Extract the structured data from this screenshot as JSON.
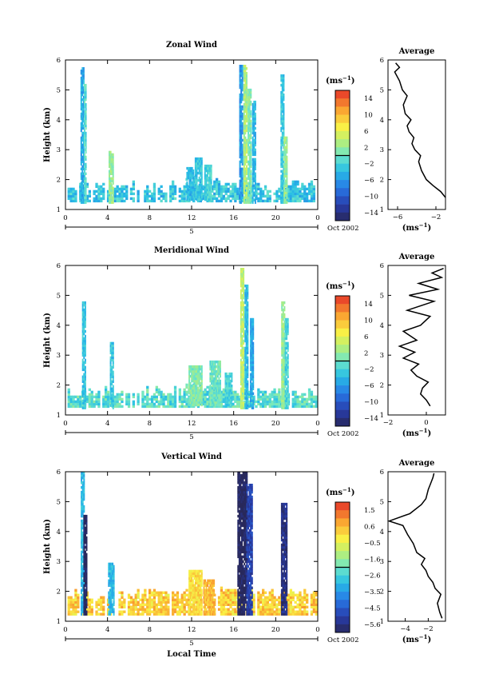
{
  "chart_data": [
    {
      "type": "heatmap",
      "title": "Zonal Wind",
      "ylabel": "Height (km)",
      "xlabel": "",
      "xlim": [
        0,
        24
      ],
      "ylim": [
        1,
        6
      ],
      "x_ticks": [
        "0",
        "4",
        "8",
        "12",
        "16",
        "20",
        "0"
      ],
      "y_ticks": [
        "1",
        "2",
        "3",
        "4",
        "5",
        "6"
      ],
      "date_label": "5",
      "date_caption": "Oct 2002",
      "colorbar": {
        "unit": "(ms",
        "unit_sup": "−1",
        "unit_close": ")",
        "ticks": [
          "14",
          "10",
          "6",
          "2",
          "−2",
          "−6",
          "−10",
          "−14"
        ],
        "range": [
          -16,
          16
        ]
      },
      "blobs": [
        {
          "x": 1.55,
          "y0": 1.2,
          "y1": 5.7,
          "w": 0.25,
          "v": -5
        },
        {
          "x": 1.85,
          "y0": 1.2,
          "y1": 5.2,
          "w": 0.2,
          "v": -1
        },
        {
          "x": 4.3,
          "y0": 1.2,
          "y1": 2.9,
          "w": 0.4,
          "v": 2
        },
        {
          "x": 11.8,
          "y0": 1.3,
          "y1": 2.4,
          "w": 0.6,
          "v": -4
        },
        {
          "x": 12.6,
          "y0": 1.3,
          "y1": 2.7,
          "w": 0.6,
          "v": -3
        },
        {
          "x": 13.5,
          "y0": 1.3,
          "y1": 2.5,
          "w": 0.6,
          "v": -2
        },
        {
          "x": 16.7,
          "y0": 1.2,
          "y1": 5.8,
          "w": 0.35,
          "v": -6
        },
        {
          "x": 17.1,
          "y0": 1.2,
          "y1": 5.8,
          "w": 0.35,
          "v": 3
        },
        {
          "x": 17.5,
          "y0": 1.2,
          "y1": 5.0,
          "w": 0.35,
          "v": 1
        },
        {
          "x": 17.9,
          "y0": 1.2,
          "y1": 4.6,
          "w": 0.3,
          "v": -4
        },
        {
          "x": 20.6,
          "y0": 1.2,
          "y1": 5.5,
          "w": 0.3,
          "v": -3
        },
        {
          "x": 20.9,
          "y0": 1.2,
          "y1": 3.4,
          "w": 0.3,
          "v": 2
        }
      ],
      "base_layer": {
        "y0": 1.25,
        "y1": 1.75,
        "v": -3
      },
      "profile": {
        "title": "Average",
        "xlabel": "(ms",
        "xlabel_sup": "−1",
        "xlabel_close": ")",
        "xlim": [
          -7,
          -1
        ],
        "x_ticks": [
          "−6",
          "−2"
        ],
        "x_tick_values": [
          -6,
          -2
        ],
        "y_ticks": [
          "1",
          "2",
          "3",
          "4",
          "5",
          "6"
        ],
        "x": [
          -1.0,
          -1.5,
          -2.3,
          -3.0,
          -3.5,
          -3.8,
          -3.6,
          -4.2,
          -4.5,
          -4.3,
          -4.8,
          -5.0,
          -4.6,
          -5.2,
          -5.4,
          -5.0,
          -5.5,
          -5.8,
          -6.3,
          -5.8,
          -6.2
        ],
        "y": [
          1.4,
          1.6,
          1.8,
          2.0,
          2.3,
          2.6,
          2.8,
          3.0,
          3.2,
          3.4,
          3.6,
          3.8,
          4.0,
          4.2,
          4.5,
          4.8,
          5.0,
          5.3,
          5.6,
          5.75,
          5.9
        ]
      }
    },
    {
      "type": "heatmap",
      "title": "Meridional Wind",
      "ylabel": "Height (km)",
      "xlabel": "",
      "xlim": [
        0,
        24
      ],
      "ylim": [
        1,
        6
      ],
      "x_ticks": [
        "0",
        "4",
        "8",
        "12",
        "16",
        "20",
        "0"
      ],
      "y_ticks": [
        "1",
        "2",
        "3",
        "4",
        "5",
        "6"
      ],
      "date_label": "5",
      "date_caption": "Oct 2002",
      "colorbar": {
        "unit": "(ms",
        "unit_sup": "−1",
        "unit_close": ")",
        "ticks": [
          "14",
          "10",
          "6",
          "2",
          "−2",
          "−6",
          "−10",
          "−14"
        ],
        "range": [
          -16,
          16
        ]
      },
      "blobs": [
        {
          "x": 1.7,
          "y0": 1.2,
          "y1": 4.8,
          "w": 0.25,
          "v": -3
        },
        {
          "x": 4.4,
          "y0": 1.2,
          "y1": 3.4,
          "w": 0.35,
          "v": -3
        },
        {
          "x": 12.3,
          "y0": 1.3,
          "y1": 2.6,
          "w": 1.2,
          "v": 1
        },
        {
          "x": 14.2,
          "y0": 1.3,
          "y1": 2.8,
          "w": 1.0,
          "v": 0
        },
        {
          "x": 15.5,
          "y0": 1.3,
          "y1": 2.4,
          "w": 0.7,
          "v": -2
        },
        {
          "x": 16.8,
          "y0": 1.2,
          "y1": 5.9,
          "w": 0.35,
          "v": 4
        },
        {
          "x": 17.2,
          "y0": 1.2,
          "y1": 5.3,
          "w": 0.35,
          "v": -4
        },
        {
          "x": 17.7,
          "y0": 1.2,
          "y1": 4.2,
          "w": 0.3,
          "v": -5
        },
        {
          "x": 20.7,
          "y0": 1.2,
          "y1": 4.8,
          "w": 0.35,
          "v": 2
        },
        {
          "x": 21.0,
          "y0": 1.2,
          "y1": 4.2,
          "w": 0.3,
          "v": -2
        }
      ],
      "base_layer": {
        "y0": 1.25,
        "y1": 1.75,
        "v": -1
      },
      "profile": {
        "title": "Average",
        "xlabel": "(ms",
        "xlabel_sup": "−1",
        "xlabel_close": ")",
        "xlim": [
          -2,
          1
        ],
        "x_ticks": [
          "−2",
          "0"
        ],
        "x_tick_values": [
          -2,
          0
        ],
        "y_ticks": [
          "1",
          "2",
          "3",
          "4",
          "5",
          "6"
        ],
        "x": [
          0.2,
          0.0,
          -0.3,
          -0.2,
          0.1,
          -0.5,
          -0.8,
          -0.4,
          -1.2,
          -0.6,
          -1.4,
          -0.5,
          -1.2,
          -0.3,
          0.2,
          -1.0,
          0.4,
          -0.9,
          0.6,
          -0.4,
          0.8,
          0.3,
          0.9
        ],
        "y": [
          1.3,
          1.5,
          1.7,
          1.9,
          2.1,
          2.3,
          2.5,
          2.7,
          2.9,
          3.1,
          3.3,
          3.5,
          3.8,
          4.0,
          4.3,
          4.5,
          4.8,
          5.0,
          5.2,
          5.4,
          5.6,
          5.75,
          5.9
        ]
      }
    },
    {
      "type": "heatmap",
      "title": "Vertical Wind",
      "ylabel": "Height (km)",
      "xlabel": "Local Time",
      "xlim": [
        0,
        24
      ],
      "ylim": [
        1,
        6
      ],
      "x_ticks": [
        "0",
        "4",
        "8",
        "12",
        "16",
        "20",
        "0"
      ],
      "y_ticks": [
        "1",
        "2",
        "3",
        "4",
        "5",
        "6"
      ],
      "date_label": "5",
      "date_caption": "Oct 2002",
      "colorbar": {
        "unit": "(ms",
        "unit_sup": "−1",
        "unit_close": ")",
        "ticks": [
          "1.5",
          "0.6",
          "−0.5",
          "−1.6",
          "−2.6",
          "−3.5",
          "−4.5",
          "−5.6"
        ],
        "range": [
          -6,
          2
        ]
      },
      "blobs": [
        {
          "x": 1.6,
          "y0": 1.2,
          "y1": 6.0,
          "w": 0.3,
          "v": -3
        },
        {
          "x": 1.85,
          "y0": 1.2,
          "y1": 4.5,
          "w": 0.3,
          "v": -6
        },
        {
          "x": 4.3,
          "y0": 1.2,
          "y1": 2.9,
          "w": 0.5,
          "v": -3
        },
        {
          "x": 12.3,
          "y0": 1.2,
          "y1": 2.7,
          "w": 1.2,
          "v": 0
        },
        {
          "x": 13.6,
          "y0": 1.2,
          "y1": 2.4,
          "w": 1.0,
          "v": 0.5
        },
        {
          "x": 16.8,
          "y0": 1.2,
          "y1": 6.0,
          "w": 0.9,
          "v": -6
        },
        {
          "x": 17.5,
          "y0": 1.2,
          "y1": 5.6,
          "w": 0.6,
          "v": -5
        },
        {
          "x": 20.8,
          "y0": 1.2,
          "y1": 4.9,
          "w": 0.6,
          "v": -5.5
        }
      ],
      "base_layer": {
        "y0": 1.2,
        "y1": 1.9,
        "v": 0.2
      },
      "profile": {
        "title": "Average",
        "xlabel": "(ms",
        "xlabel_sup": "−1",
        "xlabel_close": ")",
        "xlim": [
          -5.5,
          -0.5
        ],
        "x_ticks": [
          "−4",
          "−2"
        ],
        "x_tick_values": [
          -4,
          -2
        ],
        "y_ticks": [
          "1",
          "2",
          "3",
          "4",
          "5",
          "6"
        ],
        "x": [
          -0.8,
          -1.0,
          -1.2,
          -0.9,
          -1.4,
          -1.6,
          -2.0,
          -2.2,
          -2.6,
          -2.3,
          -3.0,
          -3.3,
          -3.8,
          -4.2,
          -5.4,
          -3.6,
          -2.6,
          -2.2,
          -2.0,
          -1.8,
          -1.6,
          -1.5
        ],
        "y": [
          1.1,
          1.3,
          1.6,
          1.9,
          2.1,
          2.3,
          2.5,
          2.7,
          2.9,
          3.1,
          3.3,
          3.6,
          3.9,
          4.2,
          4.35,
          4.6,
          4.9,
          5.1,
          5.4,
          5.6,
          5.8,
          5.95
        ]
      }
    }
  ]
}
